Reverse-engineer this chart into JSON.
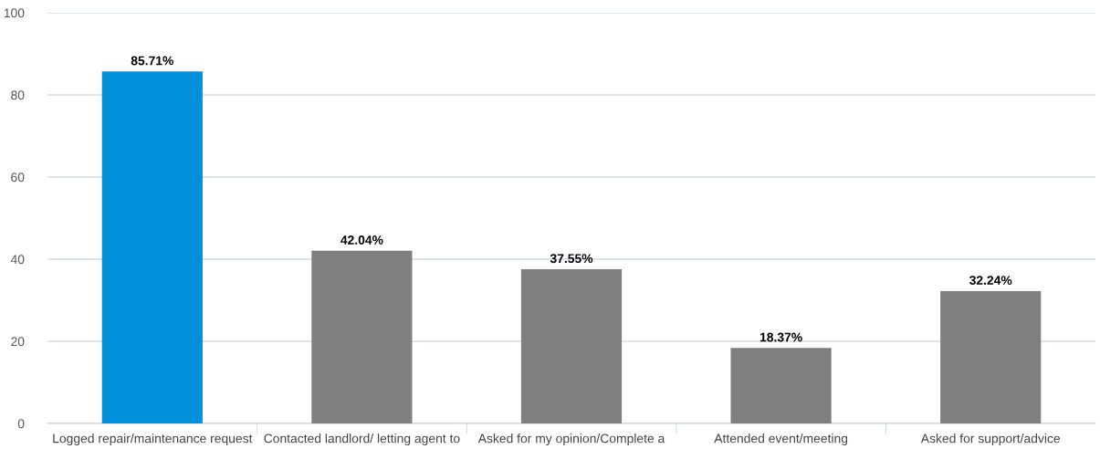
{
  "chart_data": {
    "type": "bar",
    "categories": [
      "Logged repair/maintenance request",
      "Contacted landlord/ letting agent to",
      "Asked for my opinion/Complete a",
      "Attended event/meeting",
      "Asked for support/advice"
    ],
    "values": [
      85.71,
      42.04,
      37.55,
      18.37,
      32.24
    ],
    "colors": [
      "#0090d9",
      "#7f7f7f",
      "#7f7f7f",
      "#7f7f7f",
      "#7f7f7f"
    ],
    "value_labels": [
      "85.71%",
      "42.04%",
      "37.55%",
      "18.37%",
      "32.24%"
    ],
    "ylim": [
      0,
      100
    ],
    "yticks": [
      0,
      20,
      40,
      60,
      80,
      100
    ],
    "grid": "y",
    "legend": false
  }
}
